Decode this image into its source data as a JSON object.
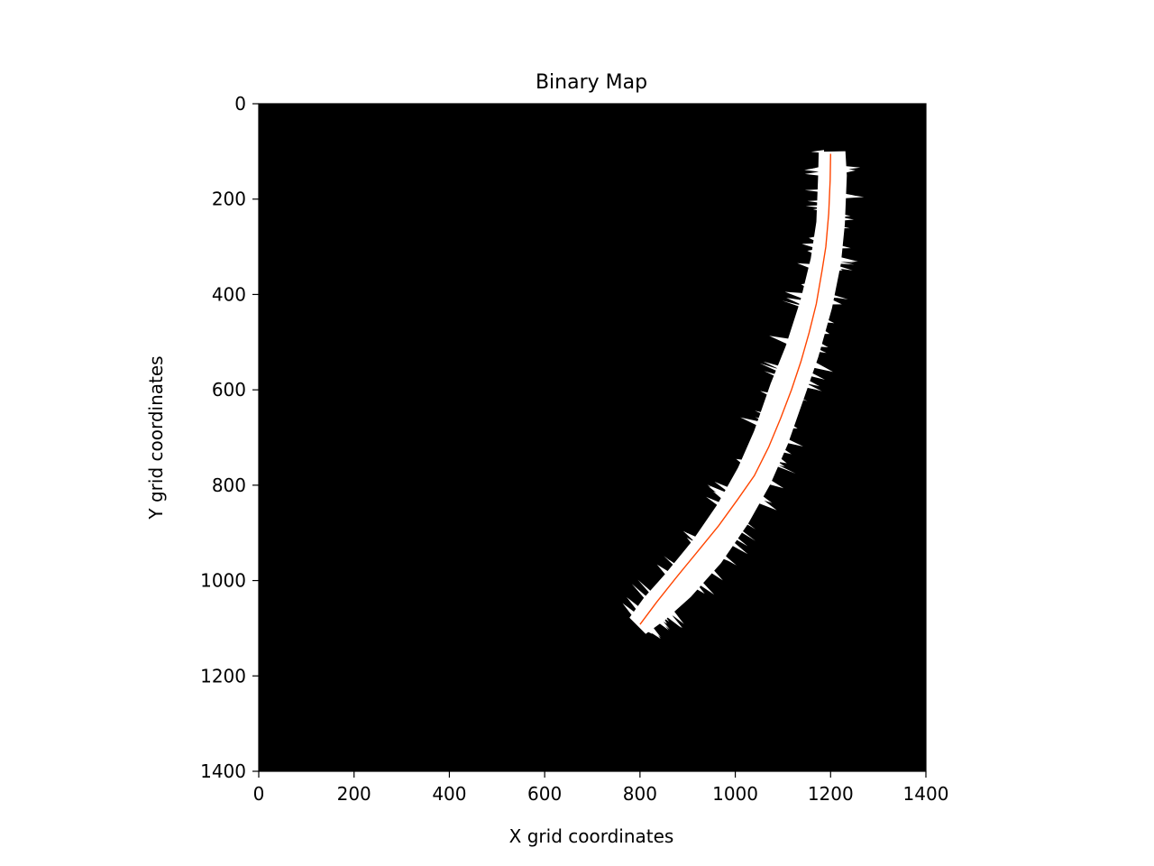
{
  "chart_data": {
    "type": "heatmap",
    "title": "Binary Map",
    "xlabel": "X grid coordinates",
    "ylabel": "Y grid coordinates",
    "xlim": [
      0,
      1400
    ],
    "ylim": [
      1400,
      0
    ],
    "y_inverted": true,
    "grid": false,
    "legend": "none",
    "x_ticks": [
      {
        "value": 0,
        "label": "0"
      },
      {
        "value": 200,
        "label": "200"
      },
      {
        "value": 400,
        "label": "400"
      },
      {
        "value": 600,
        "label": "600"
      },
      {
        "value": 800,
        "label": "800"
      },
      {
        "value": 1000,
        "label": "1000"
      },
      {
        "value": 1200,
        "label": "1200"
      },
      {
        "value": 1400,
        "label": "1400"
      }
    ],
    "y_ticks": [
      {
        "value": 0,
        "label": "0"
      },
      {
        "value": 200,
        "label": "200"
      },
      {
        "value": 400,
        "label": "400"
      },
      {
        "value": 600,
        "label": "600"
      },
      {
        "value": 800,
        "label": "800"
      },
      {
        "value": 1000,
        "label": "1000"
      },
      {
        "value": 1200,
        "label": "1200"
      },
      {
        "value": 1400,
        "label": "1400"
      }
    ],
    "colors": {
      "background": "#000000",
      "free_space": "#ffffff",
      "path": "#ff4500"
    },
    "free_space_band": [
      {
        "x": 1203,
        "y": 100,
        "half_width": 28
      },
      {
        "x": 1204,
        "y": 150,
        "half_width": 30
      },
      {
        "x": 1200,
        "y": 250,
        "half_width": 30
      },
      {
        "x": 1190,
        "y": 330,
        "half_width": 32
      },
      {
        "x": 1170,
        "y": 420,
        "half_width": 34
      },
      {
        "x": 1140,
        "y": 520,
        "half_width": 36
      },
      {
        "x": 1110,
        "y": 600,
        "half_width": 38
      },
      {
        "x": 1075,
        "y": 700,
        "half_width": 38
      },
      {
        "x": 1040,
        "y": 780,
        "half_width": 38
      },
      {
        "x": 995,
        "y": 860,
        "half_width": 38
      },
      {
        "x": 940,
        "y": 940,
        "half_width": 38
      },
      {
        "x": 880,
        "y": 1010,
        "half_width": 36
      },
      {
        "x": 830,
        "y": 1060,
        "half_width": 32
      },
      {
        "x": 795,
        "y": 1095,
        "half_width": 24
      }
    ],
    "path": {
      "x": [
        1200,
        1199,
        1196,
        1190,
        1182,
        1170,
        1155,
        1138,
        1118,
        1095,
        1070,
        1040,
        1005,
        965,
        920,
        875,
        835,
        800
      ],
      "y": [
        105,
        160,
        230,
        300,
        350,
        420,
        480,
        540,
        600,
        660,
        720,
        780,
        830,
        885,
        940,
        995,
        1045,
        1092
      ]
    }
  }
}
